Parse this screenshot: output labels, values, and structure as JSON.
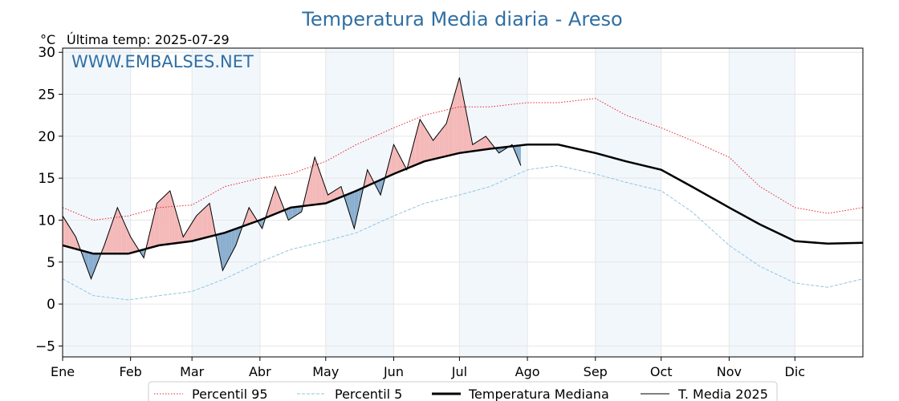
{
  "chart_data": {
    "type": "line",
    "title": "Temperatura Media diaria - Areso",
    "unit_label": "°C",
    "last_temp_label": "Última temp: 2025-07-29",
    "watermark": "WWW.EMBALSES.NET",
    "ylim": [
      -6.3,
      30.5
    ],
    "yticks": [
      -5,
      0,
      5,
      10,
      15,
      20,
      25,
      30
    ],
    "xlim_days": [
      1,
      366
    ],
    "months": [
      {
        "label": "Ene",
        "day": 1
      },
      {
        "label": "Feb",
        "day": 32
      },
      {
        "label": "Mar",
        "day": 60
      },
      {
        "label": "Abr",
        "day": 91
      },
      {
        "label": "May",
        "day": 121
      },
      {
        "label": "Jun",
        "day": 152
      },
      {
        "label": "Jul",
        "day": 182
      },
      {
        "label": "Ago",
        "day": 213
      },
      {
        "label": "Sep",
        "day": 244
      },
      {
        "label": "Oct",
        "day": 274
      },
      {
        "label": "Nov",
        "day": 305
      },
      {
        "label": "Dic",
        "day": 335
      }
    ],
    "grid": true,
    "legend_position": "bottom",
    "series": [
      {
        "name": "Percentil 95",
        "color": "#e8252b",
        "style": "dotted",
        "x": [
          1,
          15,
          31,
          45,
          60,
          75,
          91,
          105,
          121,
          135,
          152,
          166,
          182,
          196,
          213,
          227,
          244,
          258,
          274,
          288,
          305,
          319,
          335,
          350,
          366
        ],
        "y": [
          11.5,
          10.0,
          10.5,
          11.5,
          11.8,
          14.0,
          15.0,
          15.5,
          17.0,
          19.0,
          21.0,
          22.5,
          23.5,
          23.5,
          24.0,
          24.0,
          24.5,
          22.5,
          21.0,
          19.5,
          17.5,
          14.0,
          11.5,
          10.8,
          11.5
        ]
      },
      {
        "name": "Percentil 5",
        "color": "#8fc6de",
        "style": "dashed",
        "x": [
          1,
          15,
          31,
          45,
          60,
          75,
          91,
          105,
          121,
          135,
          152,
          166,
          182,
          196,
          213,
          227,
          244,
          258,
          274,
          288,
          305,
          319,
          335,
          350,
          366
        ],
        "y": [
          3.0,
          1.0,
          0.5,
          1.0,
          1.5,
          3.0,
          5.0,
          6.5,
          7.5,
          8.5,
          10.5,
          12.0,
          13.0,
          14.0,
          16.0,
          16.5,
          15.5,
          14.5,
          13.5,
          11.0,
          7.0,
          4.5,
          2.5,
          2.0,
          3.0
        ]
      },
      {
        "name": "Temperatura Mediana",
        "color": "#000000",
        "style": "bold",
        "x": [
          1,
          15,
          31,
          45,
          60,
          75,
          91,
          105,
          121,
          135,
          152,
          166,
          182,
          196,
          213,
          227,
          244,
          258,
          274,
          288,
          305,
          319,
          335,
          350,
          366
        ],
        "y": [
          7.0,
          6.0,
          6.0,
          7.0,
          7.5,
          8.5,
          10.0,
          11.5,
          12.0,
          13.5,
          15.5,
          17.0,
          18.0,
          18.5,
          19.0,
          19.0,
          18.0,
          17.0,
          16.0,
          14.0,
          11.5,
          9.5,
          7.5,
          7.2,
          7.3
        ]
      },
      {
        "name": "T. Media 2025",
        "color": "#000000",
        "style": "thin",
        "x": [
          1,
          7,
          14,
          20,
          26,
          32,
          38,
          44,
          50,
          56,
          62,
          68,
          74,
          80,
          86,
          92,
          98,
          104,
          110,
          116,
          122,
          128,
          134,
          140,
          146,
          152,
          158,
          164,
          170,
          176,
          182,
          188,
          194,
          200,
          206,
          210
        ],
        "y": [
          10.5,
          8.0,
          3.0,
          7.0,
          11.5,
          8.0,
          5.5,
          12.0,
          13.5,
          8.0,
          10.5,
          12.0,
          4.0,
          7.0,
          11.5,
          9.0,
          14.0,
          10.0,
          11.0,
          17.5,
          13.0,
          14.0,
          9.0,
          16.0,
          13.0,
          19.0,
          16.0,
          22.0,
          19.5,
          21.5,
          27.0,
          19.0,
          20.0,
          18.0,
          19.0,
          16.5
        ]
      }
    ]
  },
  "legend": [
    {
      "label": "Percentil 95"
    },
    {
      "label": "Percentil 5"
    },
    {
      "label": "Temperatura Mediana"
    },
    {
      "label": "T. Media 2025"
    }
  ]
}
